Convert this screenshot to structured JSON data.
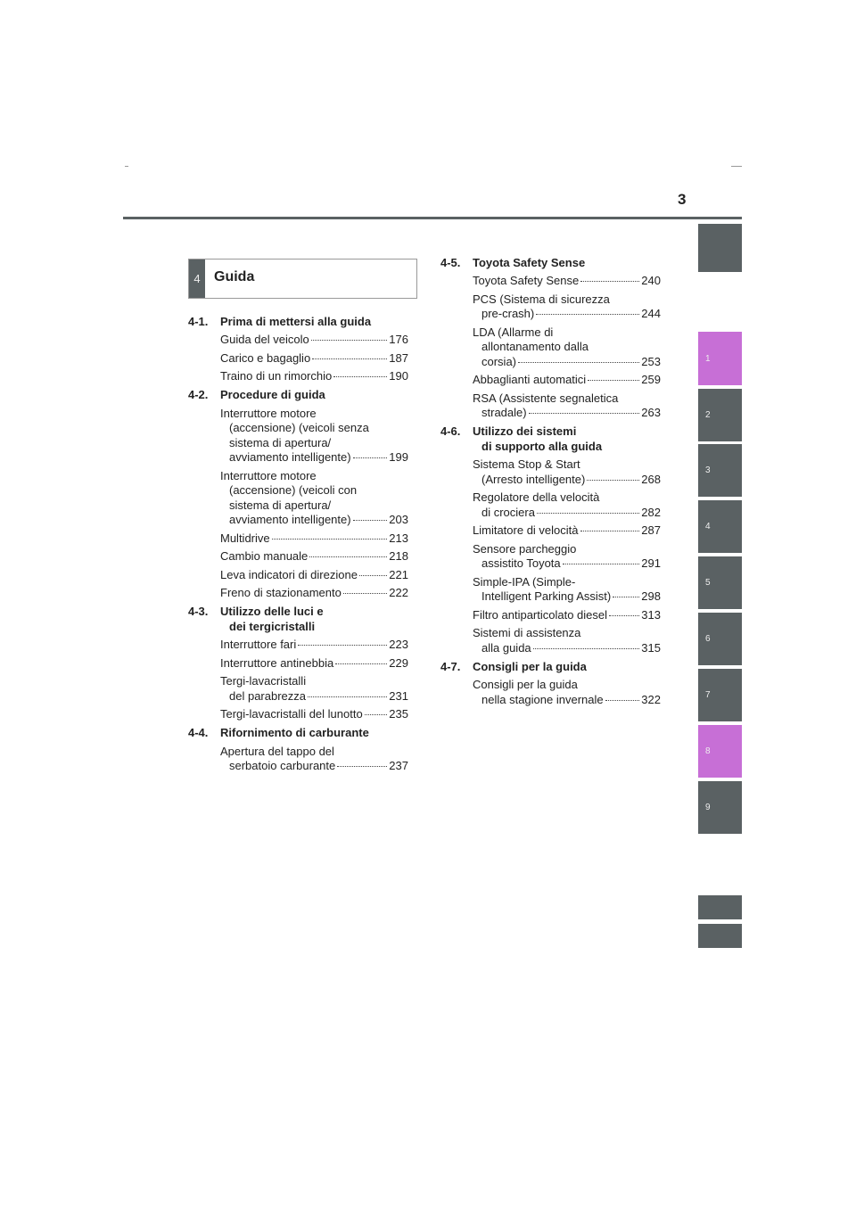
{
  "page_number": "3",
  "tabs": [
    "1",
    "2",
    "3",
    "4",
    "5",
    "6",
    "7",
    "8",
    "9"
  ],
  "chapter": {
    "number": "4",
    "title": "Guida"
  },
  "sections": [
    {
      "number": "4-1.",
      "title": [
        "Prima di mettersi alla guida"
      ],
      "entries": [
        {
          "lines": [
            "Guida del veicolo"
          ],
          "page": "176"
        },
        {
          "lines": [
            "Carico e bagaglio"
          ],
          "page": "187"
        },
        {
          "lines": [
            "Traino di un rimorchio"
          ],
          "page": "190"
        }
      ]
    },
    {
      "number": "4-2.",
      "title": [
        "Procedure di guida"
      ],
      "entries": [
        {
          "lines": [
            "Interruttore motore",
            "(accensione) (veicoli senza",
            "sistema di apertura/",
            "avviamento intelligente)"
          ],
          "page": "199"
        },
        {
          "lines": [
            "Interruttore motore",
            "(accensione) (veicoli con",
            "sistema di apertura/",
            "avviamento intelligente)"
          ],
          "page": "203"
        },
        {
          "lines": [
            "Multidrive"
          ],
          "page": "213"
        },
        {
          "lines": [
            "Cambio manuale"
          ],
          "page": "218"
        },
        {
          "lines": [
            "Leva indicatori di direzione"
          ],
          "page": "221"
        },
        {
          "lines": [
            "Freno di stazionamento"
          ],
          "page": "222"
        }
      ]
    },
    {
      "number": "4-3.",
      "title": [
        "Utilizzo delle luci e",
        "dei tergicristalli"
      ],
      "entries": [
        {
          "lines": [
            "Interruttore fari"
          ],
          "page": "223"
        },
        {
          "lines": [
            "Interruttore antinebbia"
          ],
          "page": "229"
        },
        {
          "lines": [
            "Tergi-lavacristalli",
            "del parabrezza"
          ],
          "page": "231"
        },
        {
          "lines": [
            "Tergi-lavacristalli del lunotto"
          ],
          "page": "235"
        }
      ]
    },
    {
      "number": "4-4.",
      "title": [
        "Rifornimento di carburante"
      ],
      "entries": [
        {
          "lines": [
            "Apertura del tappo del",
            "serbatoio carburante"
          ],
          "page": "237"
        }
      ]
    },
    {
      "number": "4-5.",
      "title": [
        "Toyota Safety Sense"
      ],
      "entries": [
        {
          "lines": [
            "Toyota Safety Sense"
          ],
          "page": "240"
        },
        {
          "lines": [
            "PCS (Sistema di sicurezza",
            "pre-crash)"
          ],
          "page": "244"
        },
        {
          "lines": [
            "LDA (Allarme di",
            "allontanamento dalla",
            "corsia)"
          ],
          "page": "253"
        },
        {
          "lines": [
            "Abbaglianti automatici"
          ],
          "page": "259"
        },
        {
          "lines": [
            "RSA (Assistente segnaletica",
            "stradale)"
          ],
          "page": "263"
        }
      ]
    },
    {
      "number": "4-6.",
      "title": [
        "Utilizzo dei sistemi",
        "di supporto alla guida"
      ],
      "entries": [
        {
          "lines": [
            "Sistema Stop & Start",
            "(Arresto intelligente)"
          ],
          "page": "268"
        },
        {
          "lines": [
            "Regolatore della velocità",
            "di crociera"
          ],
          "page": "282"
        },
        {
          "lines": [
            "Limitatore di velocità"
          ],
          "page": "287"
        },
        {
          "lines": [
            "Sensore parcheggio",
            "assistito Toyota"
          ],
          "page": "291"
        },
        {
          "lines": [
            "Simple-IPA (Simple-",
            "Intelligent Parking Assist)"
          ],
          "page": "298"
        },
        {
          "lines": [
            "Filtro antiparticolato diesel"
          ],
          "page": "313"
        },
        {
          "lines": [
            "Sistemi di assistenza",
            "alla guida"
          ],
          "page": "315"
        }
      ]
    },
    {
      "number": "4-7.",
      "title": [
        "Consigli per la guida"
      ],
      "entries": [
        {
          "lines": [
            "Consigli per la guida",
            "nella stagione invernale"
          ],
          "page": "322"
        }
      ]
    }
  ]
}
